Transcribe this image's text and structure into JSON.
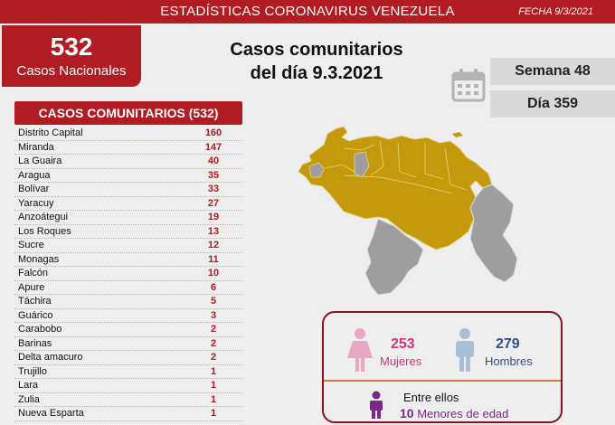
{
  "header": {
    "title": "ESTADÍSTICAS CORONAVIRUS VENEZUELA",
    "date": "FECHA 9/3/2021"
  },
  "national": {
    "count": "532",
    "label": "Casos Nacionales"
  },
  "headline": {
    "line1": "Casos comunitarios",
    "line2": "del día 9.3.2021"
  },
  "calendar_icon": "calendar-icon",
  "week": "Semana 48",
  "day": "Día 359",
  "table": {
    "title": "CASOS COMUNITARIOS (532)",
    "rows": [
      {
        "state": "Distrito Capital",
        "cases": "160"
      },
      {
        "state": "Miranda",
        "cases": "147"
      },
      {
        "state": "La Guaira",
        "cases": "40"
      },
      {
        "state": "Aragua",
        "cases": "35"
      },
      {
        "state": "Bolívar",
        "cases": "33"
      },
      {
        "state": "Yaracuy",
        "cases": "27"
      },
      {
        "state": "Anzoátegui",
        "cases": "19"
      },
      {
        "state": "Los Roques",
        "cases": "13"
      },
      {
        "state": "Sucre",
        "cases": "12"
      },
      {
        "state": "Monagas",
        "cases": "11"
      },
      {
        "state": "Falcón",
        "cases": "10"
      },
      {
        "state": "Apure",
        "cases": "6"
      },
      {
        "state": "Táchira",
        "cases": "5"
      },
      {
        "state": "Guárico",
        "cases": "3"
      },
      {
        "state": "Carabobo",
        "cases": "2"
      },
      {
        "state": "Barinas",
        "cases": "2"
      },
      {
        "state": "Delta amacuro",
        "cases": "2"
      },
      {
        "state": "Trujillo",
        "cases": "1"
      },
      {
        "state": "Lara",
        "cases": "1"
      },
      {
        "state": "Zulia",
        "cases": "1"
      },
      {
        "state": "Nueva Esparta",
        "cases": "1"
      }
    ]
  },
  "map": {
    "icon": "venezuela-map",
    "affected_color": "#c49a0c",
    "unaffected_color": "#9e9e9e"
  },
  "stats": {
    "women": {
      "count": "253",
      "label": "Mujeres",
      "color": "#d6337a"
    },
    "men": {
      "count": "279",
      "label": "Hombres",
      "color": "#2f4f8f"
    },
    "minors": {
      "line1": "Entre ellos",
      "count": "10",
      "label": "Menores de edad",
      "color": "#7a2a86"
    }
  }
}
